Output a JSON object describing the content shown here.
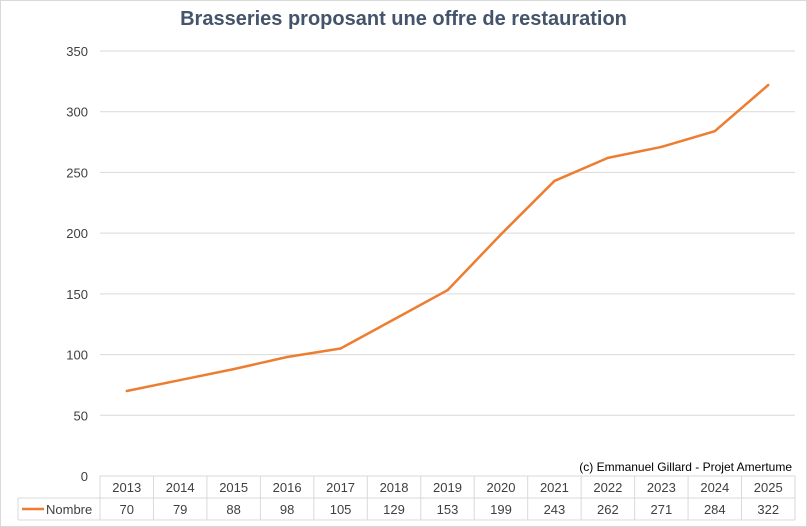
{
  "chart_data": {
    "type": "line",
    "title": "Brasseries proposant une offre de restauration",
    "categories": [
      "2013",
      "2014",
      "2015",
      "2016",
      "2017",
      "2018",
      "2019",
      "2020",
      "2021",
      "2022",
      "2023",
      "2024",
      "2025"
    ],
    "series": [
      {
        "name": "Nombre",
        "values": [
          70,
          79,
          88,
          98,
          105,
          129,
          153,
          199,
          243,
          262,
          271,
          284,
          322
        ],
        "color": "#ed7d31"
      }
    ],
    "ylim": [
      0,
      350
    ],
    "yticks": [
      0,
      50,
      100,
      150,
      200,
      250,
      300,
      350
    ],
    "grid": true,
    "legend": "data-table",
    "annotation": "(c) Emmanuel Gillard - Projet Amertume"
  }
}
